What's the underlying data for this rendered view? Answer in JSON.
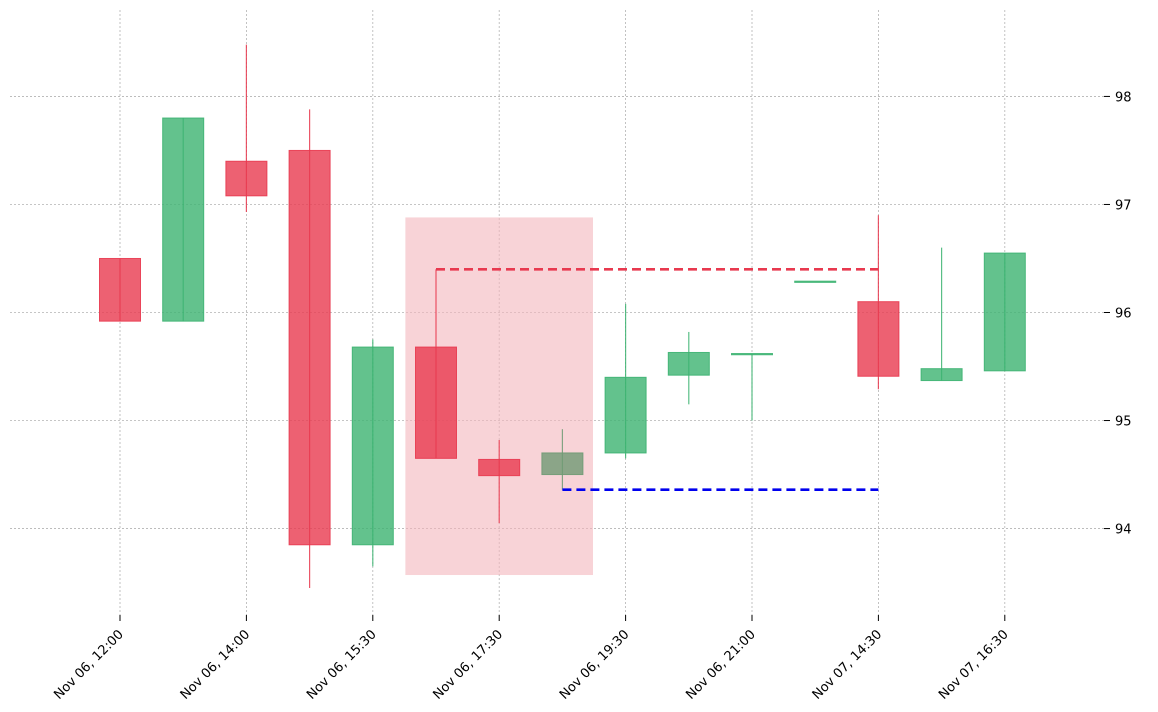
{
  "chart_data": {
    "type": "candlestick",
    "title": "",
    "xlabel": "",
    "ylabel": "",
    "y_axis_side": "right",
    "ylim": [
      93.2,
      98.8
    ],
    "y_ticks": [
      {
        "value": 94,
        "label": "94"
      },
      {
        "value": 95,
        "label": "95"
      },
      {
        "value": 96,
        "label": "96"
      },
      {
        "value": 97,
        "label": "97"
      },
      {
        "value": 98,
        "label": "98"
      }
    ],
    "x_tick_labels": [
      {
        "index": 0,
        "label": "Nov 06, 12:00"
      },
      {
        "index": 2,
        "label": "Nov 06, 14:00"
      },
      {
        "index": 4,
        "label": "Nov 06, 15:30"
      },
      {
        "index": 6,
        "label": "Nov 06, 17:30"
      },
      {
        "index": 8,
        "label": "Nov 06, 19:30"
      },
      {
        "index": 10,
        "label": "Nov 06, 21:00"
      },
      {
        "index": 12,
        "label": "Nov 07, 14:30"
      },
      {
        "index": 14,
        "label": "Nov 07, 16:30"
      }
    ],
    "grid": true,
    "colors": {
      "up": "#3cb371",
      "down": "#e8394f",
      "neutral": "#6f9a74",
      "highlight": "#f4b6bd",
      "resistance": "#e8394f",
      "support": "#0000ee"
    },
    "candles": [
      {
        "open": 96.5,
        "high": 96.5,
        "low": 95.92,
        "close": 95.92
      },
      {
        "open": 95.92,
        "high": 97.8,
        "low": 95.92,
        "close": 97.8
      },
      {
        "open": 97.4,
        "high": 98.48,
        "low": 96.93,
        "close": 97.08
      },
      {
        "open": 97.5,
        "high": 97.88,
        "low": 93.45,
        "close": 93.85
      },
      {
        "open": 93.85,
        "high": 95.75,
        "low": 93.65,
        "close": 95.68
      },
      {
        "open": 95.68,
        "high": 96.4,
        "low": 94.65,
        "close": 94.65
      },
      {
        "open": 94.64,
        "high": 94.82,
        "low": 94.05,
        "close": 94.49
      },
      {
        "open": 94.5,
        "high": 94.92,
        "low": 94.36,
        "close": 94.7,
        "neutral": true
      },
      {
        "open": 94.7,
        "high": 96.08,
        "low": 94.65,
        "close": 95.4
      },
      {
        "open": 95.42,
        "high": 95.82,
        "low": 95.15,
        "close": 95.63
      },
      {
        "open": 95.62,
        "high": 95.62,
        "low": 95.0,
        "close": 95.62
      },
      {
        "open": 96.29,
        "high": 96.29,
        "low": 96.29,
        "close": 96.29
      },
      {
        "open": 96.1,
        "high": 96.9,
        "low": 95.29,
        "close": 95.41
      },
      {
        "open": 95.37,
        "high": 96.6,
        "low": 95.37,
        "close": 95.48
      },
      {
        "open": 95.46,
        "high": 96.55,
        "low": 95.46,
        "close": 96.55
      }
    ],
    "highlight_region": {
      "start_index": 4.5,
      "end_index": 7.5,
      "ymin": 93.57,
      "ymax": 96.88
    },
    "levels": [
      {
        "kind": "resistance",
        "value": 96.4,
        "start_index": 5,
        "end_index": 12
      },
      {
        "kind": "support",
        "value": 94.36,
        "start_index": 7,
        "end_index": 12
      }
    ]
  }
}
